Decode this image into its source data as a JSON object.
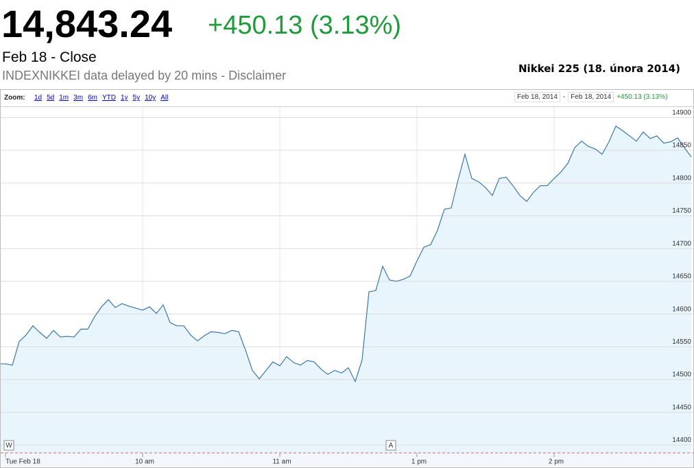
{
  "header": {
    "price": "14,843.24",
    "change": "+450.13 (3.13%)",
    "status": "Feb 18 - Close",
    "source": "INDEXNIKKEI data delayed by 20 mins - Disclaimer",
    "caption": "Nikkei 225 (18. února 2014)"
  },
  "toolbar": {
    "zoom_label": "Zoom:",
    "zoom_options": [
      "1d",
      "5d",
      "1m",
      "3m",
      "6m",
      "YTD",
      "1y",
      "5y",
      "10y",
      "All"
    ],
    "range_start": "Feb 18, 2014",
    "range_separator": "-",
    "range_end": "Feb 18, 2014",
    "range_change": "+450.13 (3.13%)"
  },
  "flags": [
    {
      "label": "W"
    },
    {
      "label": "A"
    }
  ],
  "chart_data": {
    "type": "area",
    "color": "#3b77a6",
    "fill": "#e9f5fc",
    "grid": true,
    "categories": [
      "Tue Feb 18",
      null,
      null,
      null,
      null,
      null,
      null,
      null,
      null,
      null,
      null,
      null,
      null,
      null,
      null,
      null,
      null,
      null,
      null,
      null,
      "10 am",
      null,
      null,
      null,
      null,
      null,
      null,
      null,
      null,
      null,
      null,
      null,
      null,
      null,
      null,
      null,
      null,
      null,
      null,
      null,
      "11 am",
      null,
      null,
      null,
      null,
      null,
      null,
      null,
      null,
      null,
      null,
      null,
      null,
      null,
      null,
      null,
      null,
      null,
      null,
      null,
      "1 pm",
      null,
      null,
      null,
      null,
      null,
      null,
      null,
      null,
      null,
      null,
      null,
      null,
      null,
      null,
      null,
      null,
      null,
      null,
      null,
      "2 pm",
      null,
      null,
      null,
      null,
      null,
      null,
      null,
      null,
      null,
      null,
      null,
      null,
      null,
      null,
      null,
      null,
      null,
      null,
      null,
      null
    ],
    "values": [
      14524,
      14522,
      14558,
      14568,
      14582,
      14572,
      14563,
      14575,
      14565,
      14566,
      14565,
      14577,
      14577,
      14596,
      14611,
      14622,
      14610,
      14616,
      14612,
      14609,
      14606,
      14611,
      14601,
      14614,
      14587,
      14582,
      14582,
      14568,
      14559,
      14567,
      14573,
      14572,
      14570,
      14575,
      14573,
      14545,
      14514,
      14501,
      14514,
      14527,
      14521,
      14535,
      14526,
      14522,
      14529,
      14527,
      14516,
      14508,
      14514,
      14510,
      14518,
      14497,
      14530,
      14634,
      14636,
      14673,
      14652,
      14650,
      14653,
      14658,
      14681,
      14702,
      14706,
      14728,
      14760,
      14762,
      14805,
      14844,
      14807,
      14802,
      14793,
      14781,
      14807,
      14809,
      14796,
      14781,
      14772,
      14786,
      14796,
      14796,
      14807,
      14817,
      14830,
      14854,
      14864,
      14856,
      14852,
      14844,
      14863,
      14887,
      14880,
      14872,
      14864,
      14878,
      14868,
      14872,
      14861,
      14863,
      14869,
      14854,
      14840
    ],
    "ylim": [
      14388,
      14915
    ],
    "yticks": [
      14400,
      14450,
      14500,
      14550,
      14600,
      14650,
      14700,
      14750,
      14800,
      14850,
      14900
    ]
  }
}
